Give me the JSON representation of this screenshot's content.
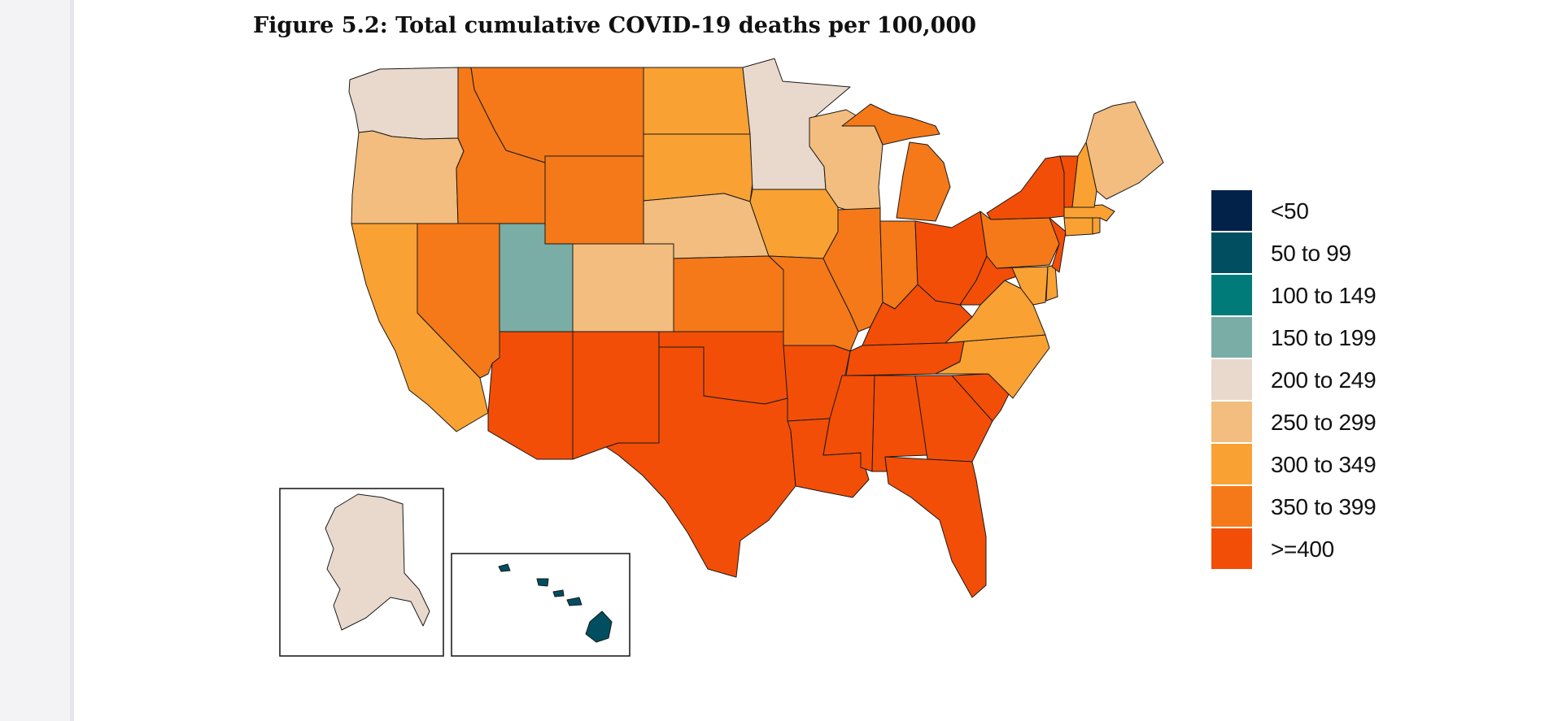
{
  "title": "Figure 5.2: Total cumulative COVID-19 deaths per 100,000",
  "legend": [
    {
      "label": "<50",
      "color": "#03224a"
    },
    {
      "label": "50 to 99",
      "color": "#004e60"
    },
    {
      "label": "100 to 149",
      "color": "#007b7a"
    },
    {
      "label": "150 to 199",
      "color": "#7aada6"
    },
    {
      "label": "200 to 249",
      "color": "#e8d9cc"
    },
    {
      "label": "250 to 299",
      "color": "#f2bd7e"
    },
    {
      "label": "300 to 349",
      "color": "#f9a133"
    },
    {
      "label": "350 to 399",
      "color": "#f57918"
    },
    {
      "label": ">=400",
      "color": "#f24e07"
    }
  ],
  "states": [
    {
      "name": "Washington",
      "bin": 4
    },
    {
      "name": "Oregon",
      "bin": 5
    },
    {
      "name": "California",
      "bin": 6
    },
    {
      "name": "Idaho",
      "bin": 7
    },
    {
      "name": "Nevada",
      "bin": 7
    },
    {
      "name": "Montana",
      "bin": 7
    },
    {
      "name": "Wyoming",
      "bin": 7
    },
    {
      "name": "Utah",
      "bin": 3
    },
    {
      "name": "Colorado",
      "bin": 5
    },
    {
      "name": "Arizona",
      "bin": 8
    },
    {
      "name": "New Mexico",
      "bin": 8
    },
    {
      "name": "North Dakota",
      "bin": 6
    },
    {
      "name": "South Dakota",
      "bin": 6
    },
    {
      "name": "Nebraska",
      "bin": 5
    },
    {
      "name": "Kansas",
      "bin": 7
    },
    {
      "name": "Oklahoma",
      "bin": 8
    },
    {
      "name": "Texas",
      "bin": 8
    },
    {
      "name": "Minnesota",
      "bin": 4
    },
    {
      "name": "Iowa",
      "bin": 6
    },
    {
      "name": "Missouri",
      "bin": 7
    },
    {
      "name": "Arkansas",
      "bin": 8
    },
    {
      "name": "Louisiana",
      "bin": 8
    },
    {
      "name": "Wisconsin",
      "bin": 5
    },
    {
      "name": "Illinois",
      "bin": 7
    },
    {
      "name": "Michigan",
      "bin": 7
    },
    {
      "name": "Indiana",
      "bin": 7
    },
    {
      "name": "Ohio",
      "bin": 8
    },
    {
      "name": "Kentucky",
      "bin": 8
    },
    {
      "name": "Tennessee",
      "bin": 8
    },
    {
      "name": "Mississippi",
      "bin": 8
    },
    {
      "name": "Alabama",
      "bin": 8
    },
    {
      "name": "Georgia",
      "bin": 8
    },
    {
      "name": "Florida",
      "bin": 8
    },
    {
      "name": "South Carolina",
      "bin": 8
    },
    {
      "name": "North Carolina",
      "bin": 6
    },
    {
      "name": "Virginia",
      "bin": 6
    },
    {
      "name": "West Virginia",
      "bin": 8
    },
    {
      "name": "Maryland",
      "bin": 6
    },
    {
      "name": "Delaware",
      "bin": 6
    },
    {
      "name": "Pennsylvania",
      "bin": 7
    },
    {
      "name": "New Jersey",
      "bin": 8
    },
    {
      "name": "New York",
      "bin": 8
    },
    {
      "name": "Connecticut",
      "bin": 6
    },
    {
      "name": "Rhode Island",
      "bin": 6
    },
    {
      "name": "Massachusetts",
      "bin": 6
    },
    {
      "name": "Vermont",
      "bin": 8
    },
    {
      "name": "New Hampshire",
      "bin": 6
    },
    {
      "name": "Maine",
      "bin": 5
    },
    {
      "name": "Alaska",
      "bin": 4
    },
    {
      "name": "Hawaii",
      "bin": 1
    }
  ]
}
